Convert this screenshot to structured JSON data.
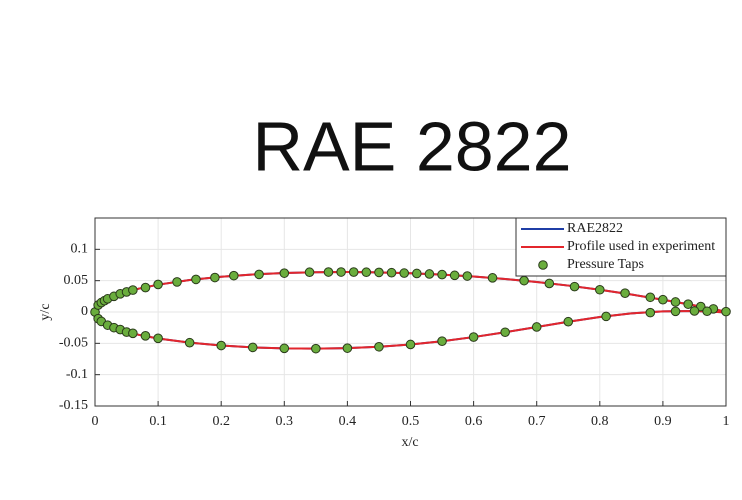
{
  "chart_data": {
    "type": "line",
    "title": "RAE 2822",
    "xlabel": "x/c",
    "ylabel": "y/c",
    "xlim": [
      0,
      1
    ],
    "xticks": [
      0,
      0.1,
      0.2,
      0.3,
      0.4,
      0.5,
      0.6,
      0.7,
      0.8,
      0.9,
      1
    ],
    "ylim": [
      -0.15,
      0.15
    ],
    "yticks": [
      -0.15,
      -0.1,
      -0.05,
      0,
      0.05,
      0.1
    ],
    "grid": true,
    "legend": "upper-right",
    "series": [
      {
        "name": "RAE2822",
        "type": "line",
        "color": "#1f3ea6",
        "x": [
          1,
          0.95,
          0.9,
          0.85,
          0.8,
          0.75,
          0.7,
          0.65,
          0.6,
          0.55,
          0.5,
          0.45,
          0.4,
          0.35,
          0.3,
          0.25,
          0.2,
          0.15,
          0.1,
          0.07,
          0.05,
          0.03,
          0.02,
          0.01,
          0.005,
          0,
          0.005,
          0.01,
          0.02,
          0.03,
          0.05,
          0.07,
          0.1,
          0.15,
          0.2,
          0.25,
          0.3,
          0.35,
          0.4,
          0.45,
          0.5,
          0.55,
          0.6,
          0.65,
          0.7,
          0.75,
          0.8,
          0.85,
          0.9,
          0.95,
          1
        ],
        "values": [
          0.0006,
          0.0106,
          0.0196,
          0.0279,
          0.0355,
          0.0422,
          0.0479,
          0.0527,
          0.0566,
          0.0597,
          0.0619,
          0.0632,
          0.0638,
          0.0635,
          0.0623,
          0.0599,
          0.0563,
          0.051,
          0.0436,
          0.0374,
          0.0321,
          0.0253,
          0.0209,
          0.015,
          0.0106,
          0,
          -0.0106,
          -0.015,
          -0.0209,
          -0.0252,
          -0.0316,
          -0.0366,
          -0.0423,
          -0.0489,
          -0.0535,
          -0.0565,
          -0.0581,
          -0.0585,
          -0.0577,
          -0.0555,
          -0.0518,
          -0.0466,
          -0.04,
          -0.0323,
          -0.0239,
          -0.0155,
          -0.0079,
          -0.0022,
          0.001,
          0.0016,
          -0.0006
        ]
      },
      {
        "name": "Profile used in experiment",
        "type": "line",
        "color": "#e3262c",
        "x": [
          1,
          0.95,
          0.9,
          0.85,
          0.8,
          0.75,
          0.7,
          0.65,
          0.6,
          0.55,
          0.5,
          0.45,
          0.4,
          0.35,
          0.3,
          0.25,
          0.2,
          0.15,
          0.1,
          0.07,
          0.05,
          0.03,
          0.02,
          0.01,
          0.005,
          0,
          0.005,
          0.01,
          0.02,
          0.03,
          0.05,
          0.07,
          0.1,
          0.15,
          0.2,
          0.25,
          0.3,
          0.35,
          0.4,
          0.45,
          0.5,
          0.55,
          0.6,
          0.65,
          0.7,
          0.75,
          0.8,
          0.85,
          0.9,
          0.95,
          1
        ],
        "values": [
          0.0006,
          0.0106,
          0.0196,
          0.0279,
          0.0355,
          0.0422,
          0.0479,
          0.0527,
          0.0566,
          0.0597,
          0.0619,
          0.0632,
          0.0638,
          0.0635,
          0.0623,
          0.0599,
          0.0563,
          0.051,
          0.0436,
          0.0374,
          0.0321,
          0.0253,
          0.0209,
          0.015,
          0.0106,
          0,
          -0.0106,
          -0.015,
          -0.0209,
          -0.0252,
          -0.0316,
          -0.0366,
          -0.0423,
          -0.0489,
          -0.0535,
          -0.0565,
          -0.0581,
          -0.0585,
          -0.0577,
          -0.0555,
          -0.0518,
          -0.0466,
          -0.04,
          -0.0323,
          -0.0239,
          -0.0155,
          -0.0079,
          -0.0022,
          0.001,
          0.0016,
          -0.0006
        ]
      },
      {
        "name": "Pressure Taps",
        "type": "scatter",
        "color": "#6aad3d",
        "x": [
          0,
          0.005,
          0.01,
          0.015,
          0.02,
          0.03,
          0.04,
          0.05,
          0.06,
          0.08,
          0.1,
          0.13,
          0.16,
          0.19,
          0.22,
          0.26,
          0.3,
          0.34,
          0.37,
          0.39,
          0.41,
          0.43,
          0.45,
          0.47,
          0.49,
          0.51,
          0.53,
          0.55,
          0.57,
          0.59,
          0.63,
          0.68,
          0.72,
          0.76,
          0.8,
          0.84,
          0.88,
          0.9,
          0.92,
          0.94,
          0.96,
          0.98,
          1,
          0.005,
          0.01,
          0.02,
          0.03,
          0.04,
          0.05,
          0.06,
          0.08,
          0.1,
          0.15,
          0.2,
          0.25,
          0.3,
          0.35,
          0.4,
          0.45,
          0.5,
          0.55,
          0.6,
          0.65,
          0.7,
          0.75,
          0.81,
          0.88,
          0.92,
          0.95,
          0.97
        ],
        "values": [
          0,
          0.011,
          0.015,
          0.018,
          0.021,
          0.025,
          0.029,
          0.032,
          0.035,
          0.039,
          0.044,
          0.048,
          0.052,
          0.055,
          0.058,
          0.06,
          0.062,
          0.0635,
          0.0638,
          0.0638,
          0.0637,
          0.0635,
          0.0632,
          0.0627,
          0.0621,
          0.0615,
          0.0607,
          0.0597,
          0.0585,
          0.0574,
          0.0545,
          0.05,
          0.0455,
          0.0405,
          0.0355,
          0.03,
          0.0235,
          0.0196,
          0.016,
          0.0125,
          0.0087,
          0.005,
          0.0006,
          -0.0106,
          -0.015,
          -0.021,
          -0.025,
          -0.028,
          -0.032,
          -0.034,
          -0.038,
          -0.042,
          -0.049,
          -0.0535,
          -0.0565,
          -0.058,
          -0.0585,
          -0.0577,
          -0.0555,
          -0.0518,
          -0.0466,
          -0.04,
          -0.0323,
          -0.0239,
          -0.0155,
          -0.007,
          -0.001,
          0.001,
          0.0016,
          0.0012
        ]
      }
    ]
  }
}
